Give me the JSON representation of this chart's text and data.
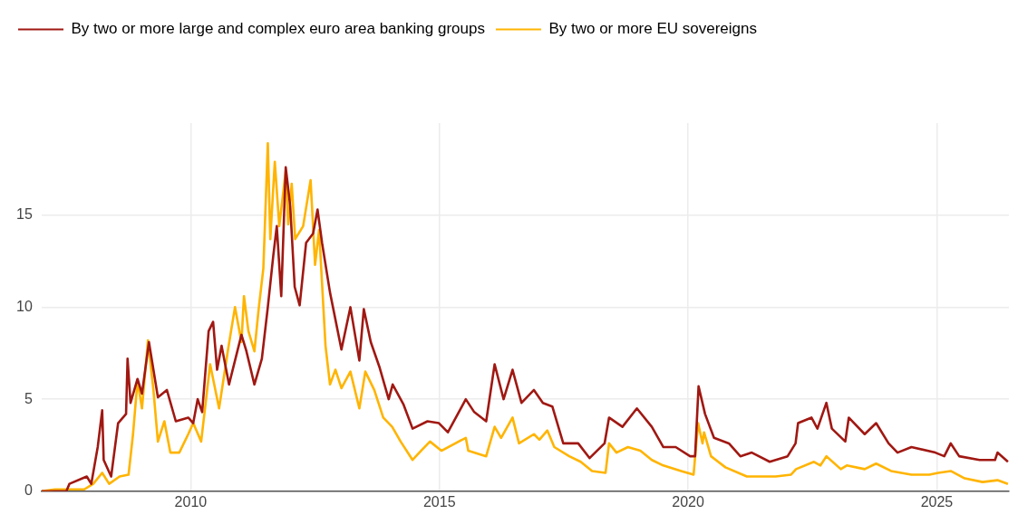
{
  "chart_data": {
    "type": "line",
    "xlim": [
      2007,
      2026.45
    ],
    "xticks": [
      2010,
      2015,
      2020,
      2025
    ],
    "ylim": [
      0,
      20
    ],
    "yticks": [
      0,
      5,
      10,
      15
    ],
    "grid": true,
    "legend": "top left",
    "marker": "none",
    "line_style": "solid",
    "series": [
      {
        "name": "By two or more large and complex euro area banking groups",
        "color": "#a01812",
        "x": [
          2007.0,
          2007.5,
          2007.56,
          2007.91,
          2008.0,
          2008.13,
          2008.22,
          2008.25,
          2008.4,
          2008.54,
          2008.7,
          2008.73,
          2008.79,
          2008.93,
          2009.02,
          2009.16,
          2009.34,
          2009.52,
          2009.7,
          2009.95,
          2010.05,
          2010.14,
          2010.23,
          2010.36,
          2010.45,
          2010.53,
          2010.62,
          2010.77,
          2011.02,
          2011.12,
          2011.28,
          2011.43,
          2011.55,
          2011.66,
          2011.73,
          2011.82,
          2011.91,
          2012.0,
          2012.09,
          2012.19,
          2012.32,
          2012.46,
          2012.55,
          2012.64,
          2012.8,
          2013.03,
          2013.21,
          2013.39,
          2013.48,
          2013.62,
          2013.8,
          2013.98,
          2014.06,
          2014.28,
          2014.46,
          2014.76,
          2014.99,
          2015.17,
          2015.53,
          2015.7,
          2015.94,
          2016.11,
          2016.29,
          2016.47,
          2016.65,
          2016.9,
          2017.08,
          2017.27,
          2017.49,
          2017.79,
          2018.02,
          2018.32,
          2018.41,
          2018.68,
          2018.97,
          2019.27,
          2019.5,
          2019.75,
          2020.04,
          2020.14,
          2020.21,
          2020.34,
          2020.52,
          2020.82,
          2021.05,
          2021.28,
          2021.64,
          2022.0,
          2022.16,
          2022.21,
          2022.48,
          2022.6,
          2022.78,
          2022.89,
          2023.16,
          2023.23,
          2023.55,
          2023.78,
          2024.03,
          2024.21,
          2024.49,
          2024.97,
          2025.15,
          2025.28,
          2025.45,
          2025.86,
          2026.17,
          2026.22,
          2026.43
        ],
        "values": [
          0.0,
          0.0,
          0.4,
          0.8,
          0.4,
          2.4,
          4.4,
          1.7,
          0.8,
          3.7,
          4.2,
          7.2,
          4.8,
          6.1,
          5.3,
          8.1,
          5.1,
          5.5,
          3.8,
          4.0,
          3.7,
          5.0,
          4.3,
          8.7,
          9.2,
          6.6,
          7.9,
          5.8,
          8.5,
          7.6,
          5.8,
          7.2,
          10.0,
          12.8,
          14.4,
          10.6,
          17.6,
          15.5,
          11.1,
          10.1,
          13.5,
          14.0,
          15.3,
          13.5,
          10.8,
          7.7,
          10.0,
          7.1,
          9.9,
          8.1,
          6.7,
          5.0,
          5.8,
          4.7,
          3.4,
          3.8,
          3.7,
          3.2,
          5.0,
          4.3,
          3.8,
          6.9,
          5.0,
          6.6,
          4.8,
          5.5,
          4.8,
          4.6,
          2.6,
          2.6,
          1.8,
          2.6,
          4.0,
          3.5,
          4.5,
          3.5,
          2.4,
          2.4,
          1.9,
          1.9,
          5.7,
          4.2,
          2.9,
          2.6,
          1.9,
          2.1,
          1.6,
          1.9,
          2.6,
          3.7,
          4.0,
          3.4,
          4.8,
          3.4,
          2.7,
          4.0,
          3.1,
          3.7,
          2.6,
          2.1,
          2.4,
          2.1,
          1.9,
          2.6,
          1.9,
          1.7,
          1.7,
          2.1,
          1.6
        ]
      },
      {
        "name": "By two or more EU sovereigns",
        "color": "#ffb400",
        "x": [
          2007.0,
          2007.27,
          2007.86,
          2008.04,
          2008.22,
          2008.36,
          2008.57,
          2008.75,
          2008.84,
          2008.93,
          2009.02,
          2009.14,
          2009.25,
          2009.34,
          2009.47,
          2009.59,
          2009.77,
          2009.95,
          2010.05,
          2010.21,
          2010.39,
          2010.57,
          2010.75,
          2010.89,
          2011.02,
          2011.07,
          2011.16,
          2011.28,
          2011.37,
          2011.46,
          2011.55,
          2011.6,
          2011.69,
          2011.78,
          2011.91,
          2011.96,
          2012.03,
          2012.1,
          2012.26,
          2012.41,
          2012.5,
          2012.58,
          2012.71,
          2012.8,
          2012.91,
          2013.03,
          2013.21,
          2013.39,
          2013.51,
          2013.69,
          2013.87,
          2014.05,
          2014.22,
          2014.46,
          2014.63,
          2014.81,
          2015.04,
          2015.53,
          2015.58,
          2015.94,
          2016.11,
          2016.24,
          2016.47,
          2016.6,
          2016.9,
          2017.01,
          2017.17,
          2017.31,
          2017.61,
          2017.84,
          2018.07,
          2018.34,
          2018.41,
          2018.56,
          2018.79,
          2019.04,
          2019.27,
          2019.5,
          2019.86,
          2020.11,
          2020.2,
          2020.29,
          2020.32,
          2020.46,
          2020.75,
          2021.18,
          2021.64,
          2021.76,
          2022.07,
          2022.17,
          2022.53,
          2022.66,
          2022.78,
          2023.07,
          2023.19,
          2023.55,
          2023.78,
          2024.08,
          2024.49,
          2024.85,
          2025.03,
          2025.28,
          2025.56,
          2025.92,
          2026.22,
          2026.43
        ],
        "values": [
          0.0,
          0.1,
          0.1,
          0.4,
          1.0,
          0.4,
          0.8,
          0.9,
          3.1,
          6.0,
          4.5,
          8.2,
          5.5,
          2.7,
          3.8,
          2.1,
          2.1,
          3.1,
          3.7,
          2.7,
          6.9,
          4.5,
          7.7,
          10.0,
          8.1,
          10.6,
          8.7,
          7.6,
          10.0,
          12.1,
          18.9,
          13.7,
          17.9,
          14.4,
          17.4,
          14.5,
          16.7,
          13.7,
          14.4,
          16.9,
          12.3,
          14.2,
          7.9,
          5.8,
          6.6,
          5.6,
          6.5,
          4.5,
          6.5,
          5.5,
          4.0,
          3.5,
          2.7,
          1.7,
          2.2,
          2.7,
          2.2,
          2.9,
          2.2,
          1.9,
          3.5,
          2.9,
          4.0,
          2.6,
          3.1,
          2.8,
          3.3,
          2.4,
          1.9,
          1.6,
          1.1,
          1.0,
          2.6,
          2.1,
          2.4,
          2.2,
          1.7,
          1.4,
          1.1,
          0.9,
          3.7,
          2.6,
          3.2,
          1.9,
          1.3,
          0.8,
          0.8,
          0.8,
          0.9,
          1.2,
          1.6,
          1.4,
          1.9,
          1.2,
          1.4,
          1.2,
          1.5,
          1.1,
          0.9,
          0.9,
          1.0,
          1.1,
          0.7,
          0.5,
          0.6,
          0.4
        ]
      }
    ]
  }
}
